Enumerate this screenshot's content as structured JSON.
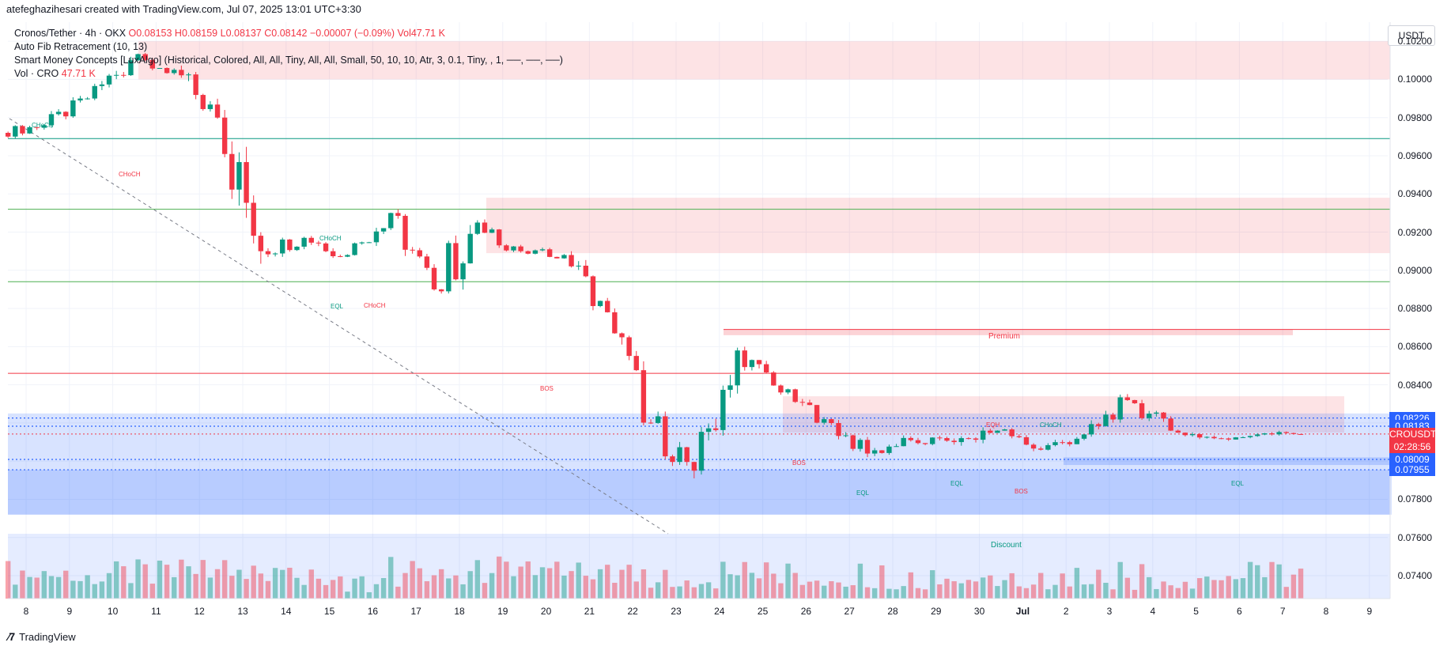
{
  "header": {
    "credit": "atefeghazihesari created with TradingView.com, Jul 07, 2025 13:01 UTC+3:30"
  },
  "legend": {
    "symbol": "Cronos/Tether · 4h · OKX",
    "o": "O0.08153",
    "h": "H0.08159",
    "l": "L0.08137",
    "c": "C0.08142",
    "change": "−0.00007 (−0.09%)",
    "vol": "Vol47.71 K",
    "fib": "Auto Fib Retracement (10, 13)",
    "smc": "Smart Money Concepts [LuxAlgo] (Historical, Colored, All, All, Tiny, All, All, Small, 50, 10, 10, Atr, 3, 0.1, Tiny, , 1, ──, ──, ──)",
    "vol_label": "Vol · CRO",
    "vol_value": "47.71 K"
  },
  "currency": "USDT",
  "footer": {
    "brand": "TradingView"
  },
  "price_tags": [
    {
      "label": "0.08226",
      "color": "#2962ff"
    },
    {
      "label": "0.08183",
      "color": "#2962ff"
    },
    {
      "label": "CROUSDT",
      "color": "#f23645"
    },
    {
      "label": "02:28:56",
      "color": "#f23645"
    },
    {
      "label": "0.08009",
      "color": "#2962ff"
    },
    {
      "label": "0.07955",
      "color": "#2962ff"
    }
  ],
  "annotations": {
    "premium": "Premium",
    "discount": "Discount",
    "choch": "CHoCH",
    "bos": "BOS",
    "eql": "EQL",
    "eqh": "EQH"
  },
  "chart_data": {
    "type": "candlestick",
    "symbol": "CROUSDT",
    "interval": "4h",
    "y_ticks": [
      0.102,
      0.1,
      0.098,
      0.096,
      0.094,
      0.092,
      0.09,
      0.088,
      0.086,
      0.084,
      0.082,
      0.08,
      0.078,
      0.076,
      0.074
    ],
    "y_tick_labels": [
      "0.10200",
      "0.10000",
      "0.09800",
      "0.09600",
      "0.09400",
      "0.09200",
      "0.09000",
      "0.08800",
      "0.08600",
      "0.08400",
      "0.08200",
      "0.08000",
      "0.07800",
      "0.07600",
      "0.07400"
    ],
    "ylim": [
      0.0728,
      0.103
    ],
    "x_labels": [
      "8",
      "9",
      "10",
      "11",
      "12",
      "13",
      "14",
      "15",
      "16",
      "17",
      "18",
      "19",
      "20",
      "21",
      "22",
      "23",
      "24",
      "25",
      "26",
      "27",
      "28",
      "29",
      "30",
      "Jul",
      "2",
      "3",
      "4",
      "5",
      "6",
      "7",
      "8",
      "9"
    ],
    "last_price": 0.08142,
    "ohlc_daily": [
      {
        "day": "8",
        "o": 0.0972,
        "h": 0.0981,
        "l": 0.0966,
        "c": 0.0976
      },
      {
        "day": "9",
        "o": 0.0976,
        "h": 0.0994,
        "l": 0.0973,
        "c": 0.099
      },
      {
        "day": "10",
        "o": 0.099,
        "h": 0.102,
        "l": 0.0985,
        "c": 0.101
      },
      {
        "day": "11",
        "o": 0.101,
        "h": 0.1022,
        "l": 0.0998,
        "c": 0.1005
      },
      {
        "day": "12",
        "o": 0.1005,
        "h": 0.1015,
        "l": 0.0976,
        "c": 0.098
      },
      {
        "day": "13",
        "o": 0.098,
        "h": 0.0984,
        "l": 0.0877,
        "c": 0.091
      },
      {
        "day": "14",
        "o": 0.091,
        "h": 0.0922,
        "l": 0.0898,
        "c": 0.0917
      },
      {
        "day": "15",
        "o": 0.0917,
        "h": 0.0918,
        "l": 0.0896,
        "c": 0.0908
      },
      {
        "day": "16",
        "o": 0.0908,
        "h": 0.0935,
        "l": 0.0905,
        "c": 0.093
      },
      {
        "day": "17",
        "o": 0.093,
        "h": 0.0932,
        "l": 0.0885,
        "c": 0.089
      },
      {
        "day": "18",
        "o": 0.089,
        "h": 0.0938,
        "l": 0.0855,
        "c": 0.0925
      },
      {
        "day": "19",
        "o": 0.0925,
        "h": 0.093,
        "l": 0.0902,
        "c": 0.091
      },
      {
        "day": "20",
        "o": 0.091,
        "h": 0.0912,
        "l": 0.09,
        "c": 0.0908
      },
      {
        "day": "21",
        "o": 0.0908,
        "h": 0.091,
        "l": 0.087,
        "c": 0.0878
      },
      {
        "day": "22",
        "o": 0.0878,
        "h": 0.088,
        "l": 0.0815,
        "c": 0.082
      },
      {
        "day": "23",
        "o": 0.082,
        "h": 0.0826,
        "l": 0.0772,
        "c": 0.0795
      },
      {
        "day": "24",
        "o": 0.0795,
        "h": 0.0862,
        "l": 0.0793,
        "c": 0.0858
      },
      {
        "day": "25",
        "o": 0.0858,
        "h": 0.086,
        "l": 0.083,
        "c": 0.0836
      },
      {
        "day": "26",
        "o": 0.0836,
        "h": 0.0838,
        "l": 0.0814,
        "c": 0.0822
      },
      {
        "day": "27",
        "o": 0.0822,
        "h": 0.0825,
        "l": 0.08,
        "c": 0.0804
      },
      {
        "day": "28",
        "o": 0.0804,
        "h": 0.0818,
        "l": 0.08,
        "c": 0.0811
      },
      {
        "day": "29",
        "o": 0.0811,
        "h": 0.0822,
        "l": 0.0805,
        "c": 0.081
      },
      {
        "day": "30",
        "o": 0.081,
        "h": 0.083,
        "l": 0.0806,
        "c": 0.0816
      },
      {
        "day": "Jul",
        "o": 0.0816,
        "h": 0.0822,
        "l": 0.0803,
        "c": 0.0806
      },
      {
        "day": "2",
        "o": 0.0806,
        "h": 0.0816,
        "l": 0.0798,
        "c": 0.0814
      },
      {
        "day": "3",
        "o": 0.0814,
        "h": 0.0838,
        "l": 0.0812,
        "c": 0.0832
      },
      {
        "day": "4",
        "o": 0.0832,
        "h": 0.0837,
        "l": 0.0812,
        "c": 0.0816
      },
      {
        "day": "5",
        "o": 0.0816,
        "h": 0.082,
        "l": 0.0808,
        "c": 0.0812
      },
      {
        "day": "6",
        "o": 0.0812,
        "h": 0.0818,
        "l": 0.0808,
        "c": 0.0814
      },
      {
        "day": "7",
        "o": 0.0814,
        "h": 0.0819,
        "l": 0.081,
        "c": 0.0814
      }
    ],
    "horizontal_levels": [
      {
        "price": 0.0969,
        "color": "#089981"
      },
      {
        "price": 0.0932,
        "color": "#4caf50"
      },
      {
        "price": 0.0894,
        "color": "#4caf50"
      },
      {
        "price": 0.0846,
        "color": "#f23645"
      },
      {
        "price": 0.0869,
        "color": "#f23645"
      }
    ],
    "zones": [
      {
        "from": 0.1,
        "to": 0.102,
        "kind": "supply"
      },
      {
        "from": 0.0909,
        "to": 0.0938,
        "kind": "supply"
      },
      {
        "from": 0.0866,
        "to": 0.0869,
        "kind": "premium"
      },
      {
        "from": 0.0815,
        "to": 0.0834,
        "kind": "supply"
      },
      {
        "from": 0.0798,
        "to": 0.0802,
        "kind": "demand"
      },
      {
        "from": 0.0772,
        "to": 0.0825,
        "kind": "discount"
      }
    ],
    "legend": "none",
    "grid": true
  }
}
